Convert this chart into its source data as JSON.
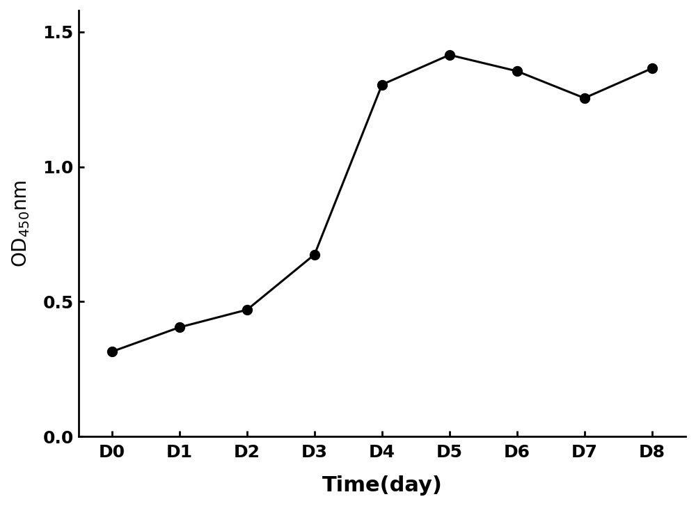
{
  "x_labels": [
    "D0",
    "D1",
    "D2",
    "D3",
    "D4",
    "D5",
    "D6",
    "D7",
    "D8"
  ],
  "x_values": [
    0,
    1,
    2,
    3,
    4,
    5,
    6,
    7,
    8
  ],
  "y_values": [
    0.315,
    0.405,
    0.47,
    0.675,
    1.305,
    1.415,
    1.355,
    1.255,
    1.365
  ],
  "line_color": "#000000",
  "marker": "o",
  "marker_size": 10,
  "marker_facecolor": "#000000",
  "linewidth": 2.2,
  "xlabel": "Time(day)",
  "xlabel_fontsize": 22,
  "tick_fontsize": 18,
  "ylim": [
    0.0,
    1.58
  ],
  "yticks": [
    0.0,
    0.5,
    1.0,
    1.5
  ],
  "background_color": "#ffffff",
  "spine_color": "#000000"
}
